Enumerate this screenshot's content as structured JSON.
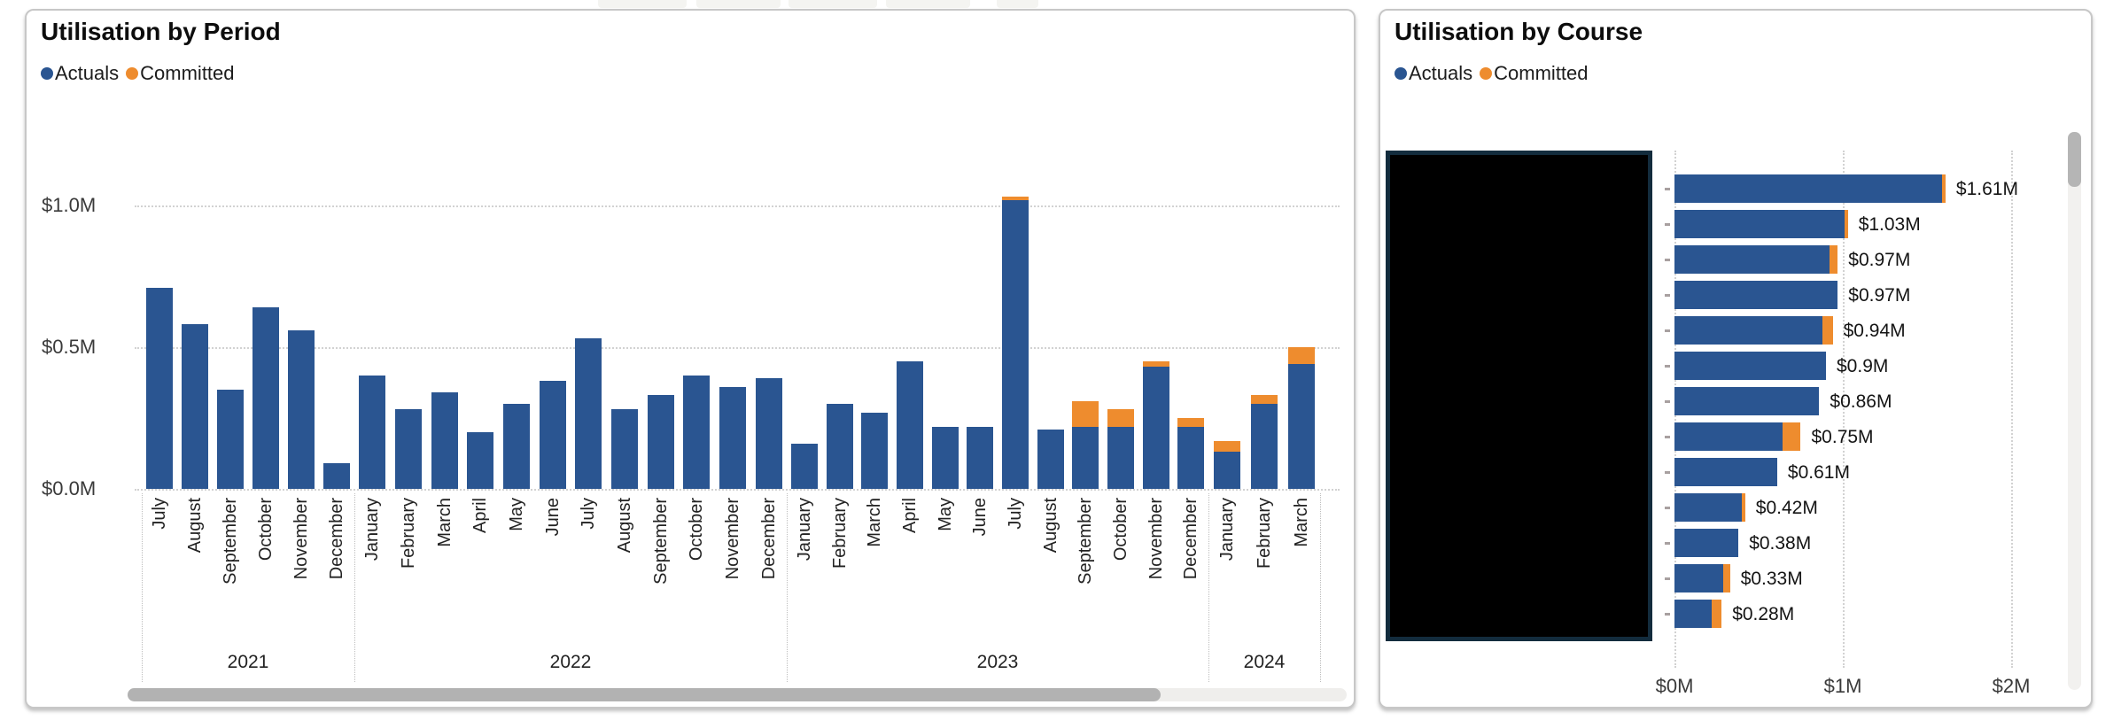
{
  "colors": {
    "actuals": "#2A5591",
    "committed": "#EE8C2E"
  },
  "chart_data": [
    {
      "type": "bar",
      "stacked": true,
      "title": "Utilisation by Period",
      "legend": [
        "Actuals",
        "Committed"
      ],
      "legend_position": "top-left",
      "grid": "horizontal-dotted",
      "unit": "$M",
      "ylim": [
        0,
        1.25
      ],
      "y_ticks": [
        "$0.0M",
        "$0.5M",
        "$1.0M"
      ],
      "y_tick_values": [
        0,
        0.5,
        1.0
      ],
      "groups": [
        {
          "year": "2021",
          "categories": [
            "July",
            "August",
            "September",
            "October",
            "November",
            "December"
          ],
          "series": [
            {
              "name": "Actuals",
              "values": [
                0.71,
                0.58,
                0.35,
                0.64,
                0.56,
                0.09
              ]
            },
            {
              "name": "Committed",
              "values": [
                0,
                0,
                0,
                0,
                0,
                0
              ]
            }
          ]
        },
        {
          "year": "2022",
          "categories": [
            "January",
            "February",
            "March",
            "April",
            "May",
            "June",
            "July",
            "August",
            "September",
            "October",
            "November",
            "December"
          ],
          "series": [
            {
              "name": "Actuals",
              "values": [
                0.4,
                0.28,
                0.34,
                0.2,
                0.3,
                0.38,
                0.53,
                0.28,
                0.33,
                0.4,
                0.36,
                0.39
              ]
            },
            {
              "name": "Committed",
              "values": [
                0,
                0,
                0,
                0,
                0,
                0,
                0,
                0,
                0,
                0,
                0,
                0
              ]
            }
          ]
        },
        {
          "year": "2023",
          "categories": [
            "January",
            "February",
            "March",
            "April",
            "May",
            "June",
            "July",
            "August",
            "September",
            "October",
            "November",
            "December"
          ],
          "series": [
            {
              "name": "Actuals",
              "values": [
                0.16,
                0.3,
                0.27,
                0.45,
                0.22,
                0.22,
                1.02,
                0.21,
                0.22,
                0.22,
                0.43,
                0.22
              ]
            },
            {
              "name": "Committed",
              "values": [
                0,
                0,
                0,
                0,
                0,
                0,
                0.01,
                0,
                0.09,
                0.06,
                0.02,
                0.03
              ]
            }
          ]
        },
        {
          "year": "2024",
          "categories": [
            "January",
            "February",
            "March"
          ],
          "series": [
            {
              "name": "Actuals",
              "values": [
                0.13,
                0.3,
                0.44
              ]
            },
            {
              "name": "Committed",
              "values": [
                0.04,
                0.03,
                0.06
              ]
            }
          ]
        }
      ]
    },
    {
      "type": "bar-horizontal",
      "stacked": true,
      "title": "Utilisation by Course",
      "legend": [
        "Actuals",
        "Committed"
      ],
      "legend_position": "top-left",
      "grid": "vertical-dotted",
      "unit": "$M",
      "xlim": [
        0,
        2
      ],
      "x_ticks": [
        "$0M",
        "$1M",
        "$2M"
      ],
      "x_tick_values": [
        0,
        1,
        2
      ],
      "categories_redacted": true,
      "rows": [
        {
          "label": "$1.61M",
          "actuals": 1.59,
          "committed": 0.02
        },
        {
          "label": "$1.03M",
          "actuals": 1.01,
          "committed": 0.02
        },
        {
          "label": "$0.97M",
          "actuals": 0.92,
          "committed": 0.05
        },
        {
          "label": "$0.97M",
          "actuals": 0.97,
          "committed": 0
        },
        {
          "label": "$0.94M",
          "actuals": 0.88,
          "committed": 0.06
        },
        {
          "label": "$0.9M",
          "actuals": 0.9,
          "committed": 0
        },
        {
          "label": "$0.86M",
          "actuals": 0.86,
          "committed": 0
        },
        {
          "label": "$0.75M",
          "actuals": 0.64,
          "committed": 0.11
        },
        {
          "label": "$0.61M",
          "actuals": 0.61,
          "committed": 0
        },
        {
          "label": "$0.42M",
          "actuals": 0.4,
          "committed": 0.02
        },
        {
          "label": "$0.38M",
          "actuals": 0.38,
          "committed": 0
        },
        {
          "label": "$0.33M",
          "actuals": 0.29,
          "committed": 0.04
        },
        {
          "label": "$0.28M",
          "actuals": 0.22,
          "committed": 0.06
        }
      ]
    }
  ]
}
